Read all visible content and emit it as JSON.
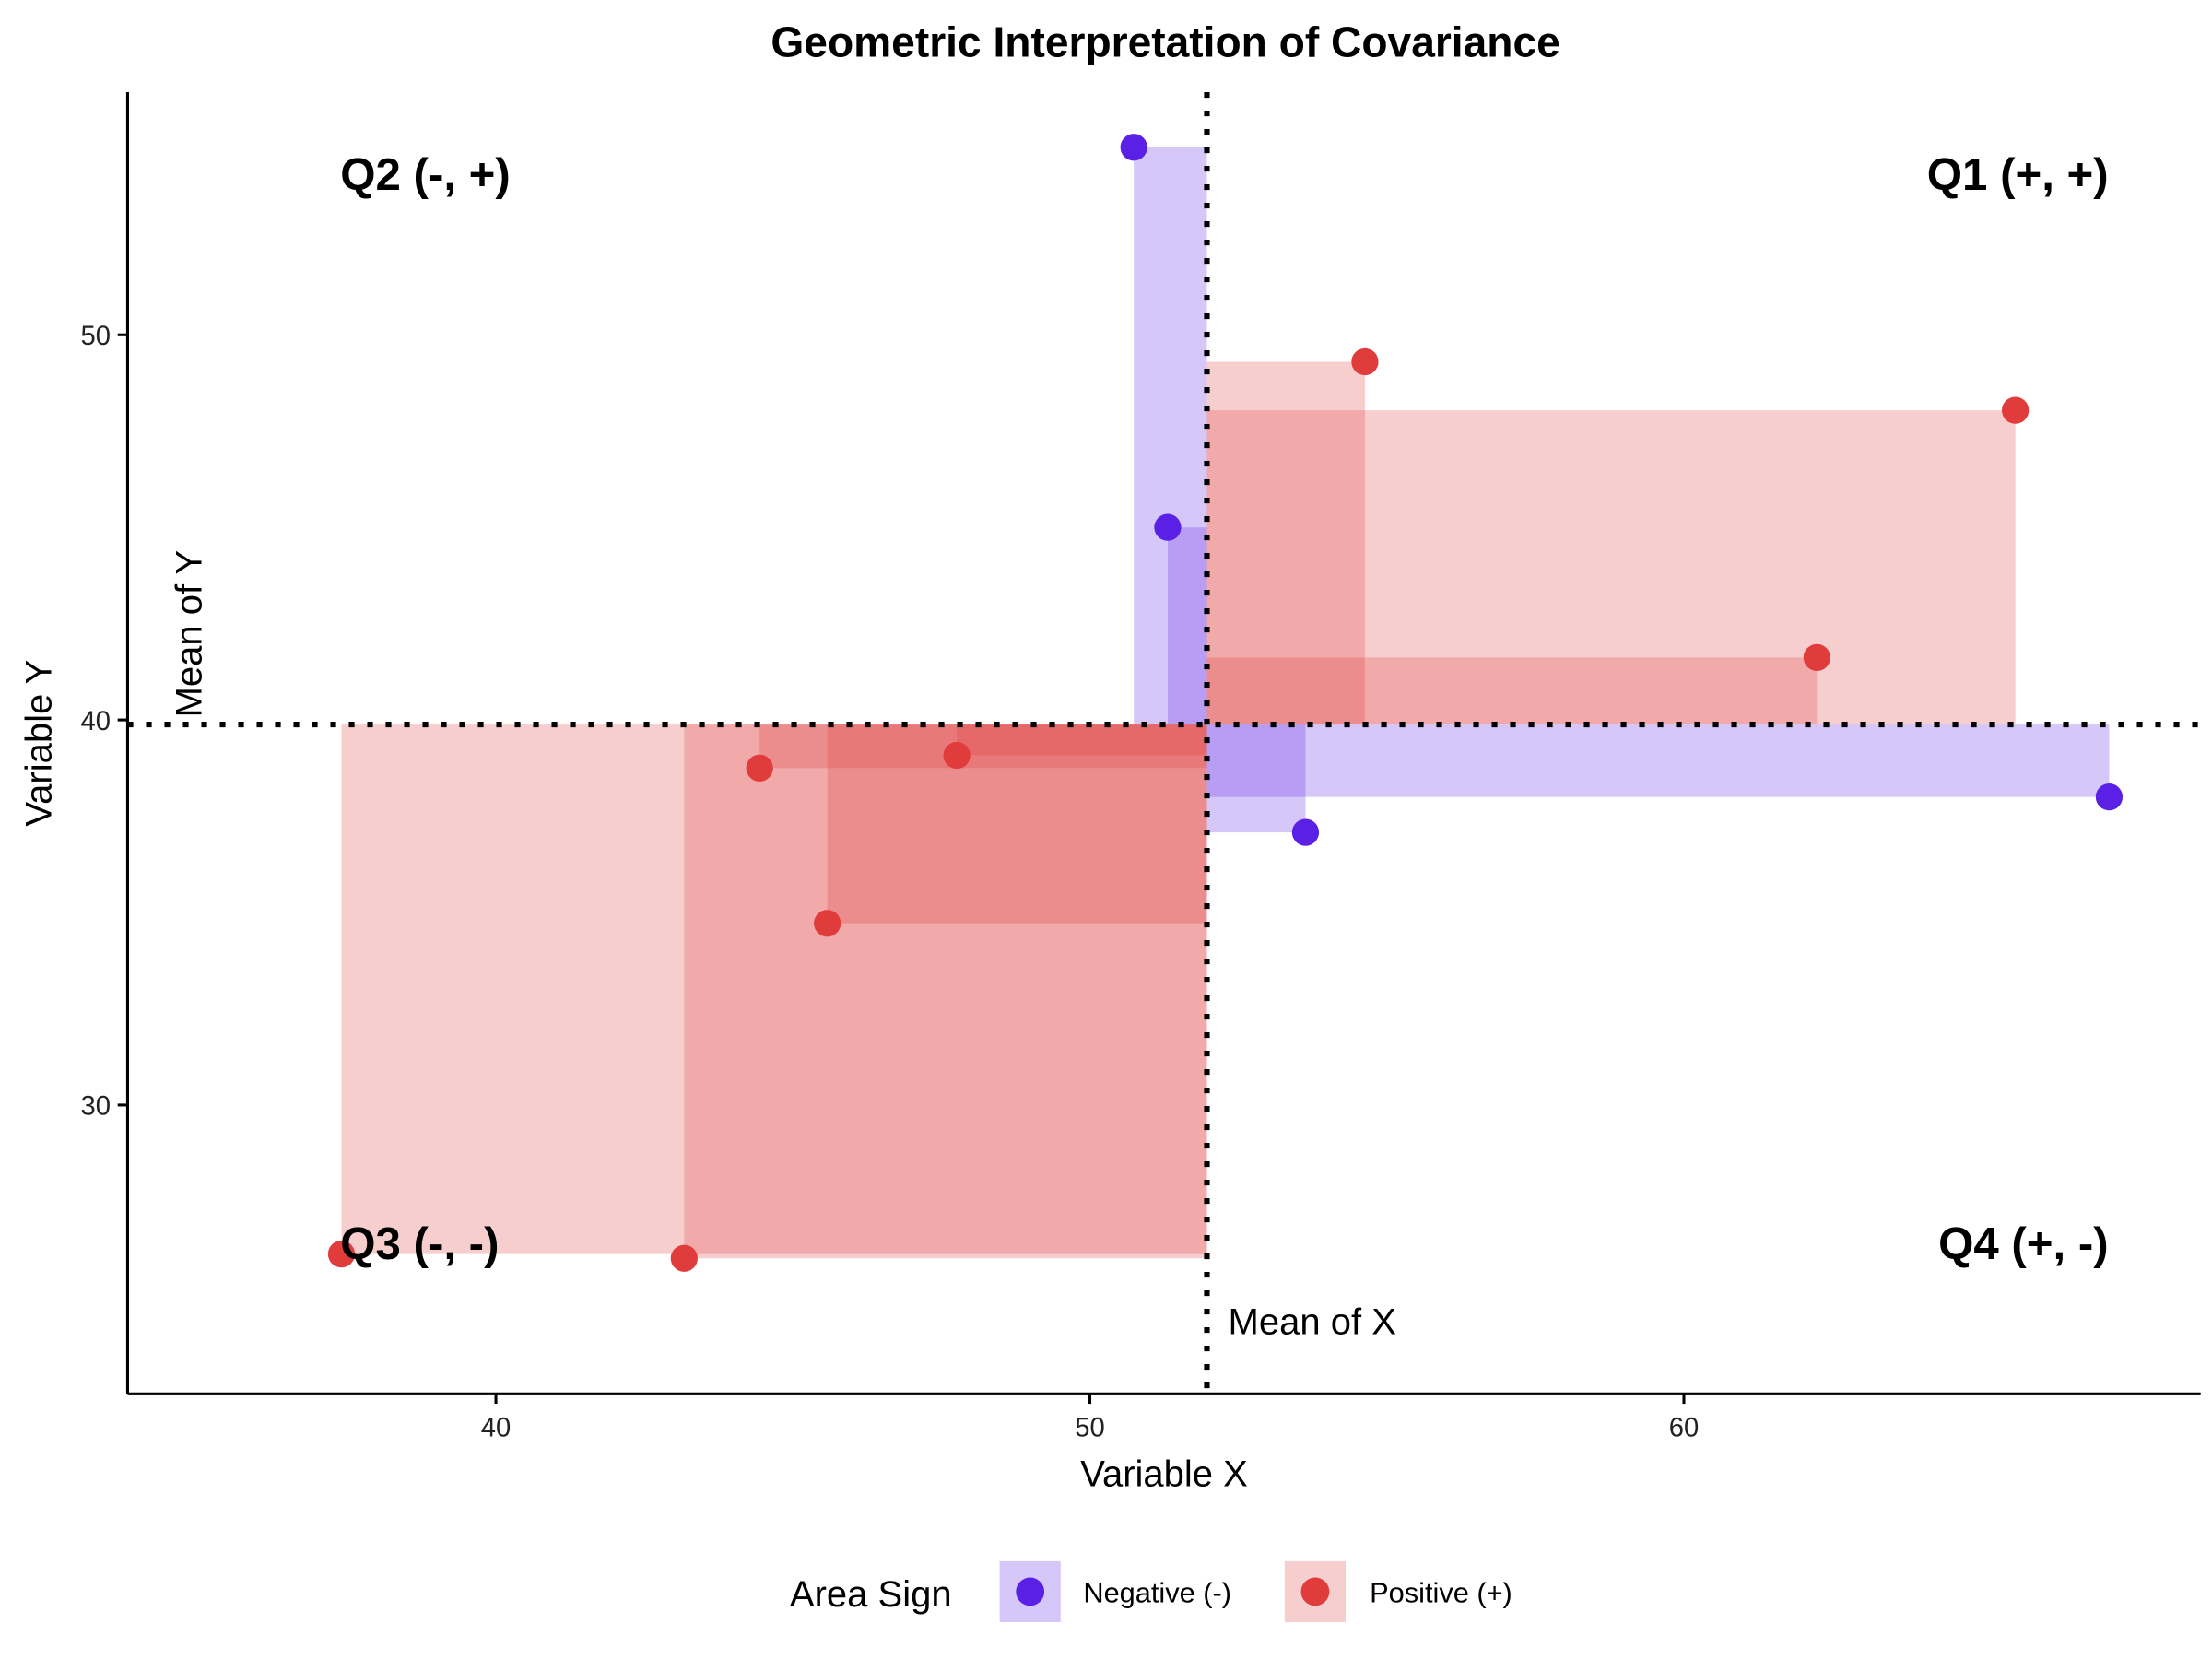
{
  "chart_data": {
    "type": "scatter",
    "title": "Geometric Interpretation of Covariance",
    "xlabel": "Variable X",
    "ylabel": "Variable Y",
    "xlim": [
      33.8,
      68.7
    ],
    "ylim": [
      22.5,
      56.3
    ],
    "xticks": [
      40,
      50,
      60
    ],
    "yticks": [
      30,
      40,
      50
    ],
    "grid": false,
    "mean_x": 51.97,
    "mean_y": 39.88,
    "mean_x_label": "Mean of X",
    "mean_y_label": "Mean of Y",
    "quadrant_labels": {
      "q1": "Q1 (+, +)",
      "q2": "Q2 (-, +)",
      "q3": "Q3 (-, -)",
      "q4": "Q4 (+, -)"
    },
    "legend": {
      "title": "Area Sign",
      "placement": "bottom",
      "entries": [
        {
          "key": "negative",
          "label": "Negative (-)",
          "color": "#5a20e6"
        },
        {
          "key": "positive",
          "label": "Positive (+)",
          "color": "#e03c3c"
        }
      ]
    },
    "points": [
      {
        "x": 50.74,
        "y": 54.87,
        "sign": "negative"
      },
      {
        "x": 51.31,
        "y": 45.0,
        "sign": "negative"
      },
      {
        "x": 53.63,
        "y": 37.08,
        "sign": "negative"
      },
      {
        "x": 67.16,
        "y": 38.0,
        "sign": "negative"
      },
      {
        "x": 54.63,
        "y": 49.3,
        "sign": "positive"
      },
      {
        "x": 65.58,
        "y": 48.04,
        "sign": "positive"
      },
      {
        "x": 62.24,
        "y": 41.62,
        "sign": "positive"
      },
      {
        "x": 47.76,
        "y": 39.08,
        "sign": "positive"
      },
      {
        "x": 44.44,
        "y": 38.75,
        "sign": "positive"
      },
      {
        "x": 45.58,
        "y": 34.72,
        "sign": "positive"
      },
      {
        "x": 37.4,
        "y": 26.13,
        "sign": "positive"
      },
      {
        "x": 43.17,
        "y": 26.02,
        "sign": "positive"
      }
    ]
  }
}
